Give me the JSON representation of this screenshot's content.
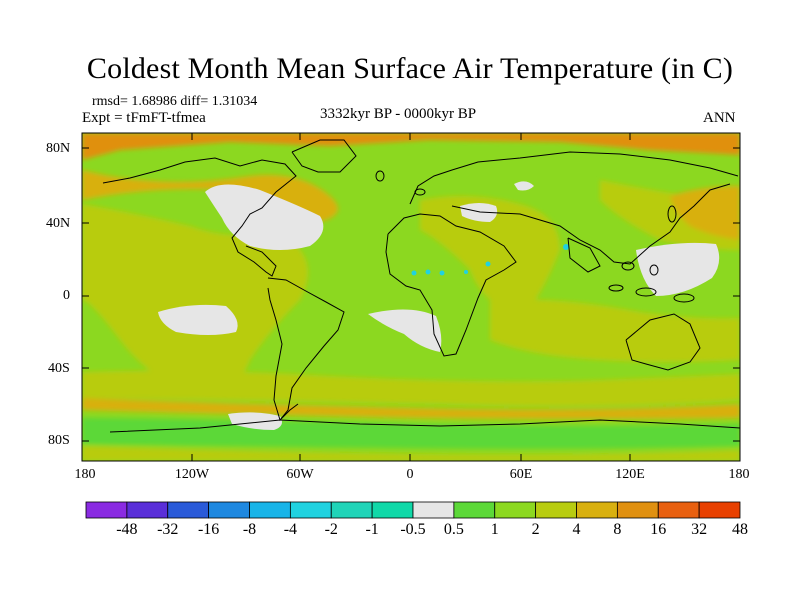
{
  "title": "Coldest Month Mean Surface Air Temperature (in C)",
  "stats_line": "rmsd= 1.68986 diff= 1.31034",
  "expt_line": "Expt = tFmFT-tfmea",
  "center_label": "3332kyr BP - 0000kyr BP",
  "right_label": "ANN",
  "lat_labels": [
    "80N",
    "40N",
    "0",
    "40S",
    "80S"
  ],
  "lon_labels": [
    "180",
    "120W",
    "60W",
    "0",
    "60E",
    "120E",
    "180"
  ],
  "colorbar": {
    "labels": [
      "-48",
      "-32",
      "-16",
      "-8",
      "-4",
      "-2",
      "-1",
      "-0.5",
      "0.5",
      "1",
      "2",
      "4",
      "8",
      "16",
      "32",
      "48"
    ],
    "colors": [
      "#8a2be2",
      "#5a2fd8",
      "#2a5ad8",
      "#1e88e0",
      "#18b4e8",
      "#20d2e0",
      "#20d4b8",
      "#10d8a8",
      "#e6e6e6",
      "#5cd838",
      "#8cd820",
      "#b8cc10",
      "#d8b010",
      "#e09010",
      "#e86010",
      "#e84000"
    ]
  },
  "map": {
    "field_colors": {
      "base": "#8cd820",
      "warm": "#b8cc10",
      "warmer": "#d8b010",
      "hot": "#e09010",
      "cool": "#5cd838",
      "neutral": "#e6e6e6",
      "cold": "#20d2e0",
      "coastline": "#000000"
    }
  }
}
